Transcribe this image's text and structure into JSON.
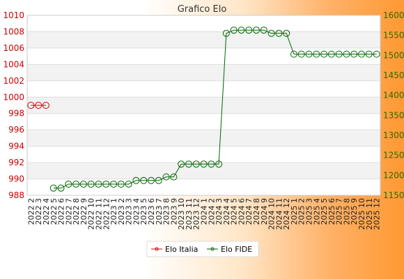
{
  "chart_data": {
    "type": "line",
    "title": "Grafico Elo",
    "x": [
      "2022 2",
      "2022 3",
      "2022 4",
      "2022 5",
      "2022 6",
      "2022 7",
      "2022 8",
      "2022 9",
      "2022 10",
      "2022 11",
      "2022 12",
      "2023 1",
      "2023 2",
      "2023 3",
      "2023 4",
      "2023 5",
      "2023 6",
      "2023 7",
      "2023 8",
      "2023 9",
      "2023 10",
      "2023 11",
      "2023 12",
      "2024 1",
      "2024 2",
      "2024 3",
      "2024 4",
      "2024 5",
      "2024 6",
      "2024 7",
      "2024 8",
      "2024 9",
      "2024 10",
      "2024 11",
      "2024 12",
      "2025 1",
      "2025 2",
      "2025 3",
      "2025 4",
      "2025 5",
      "2025 6",
      "2025 7",
      "2025 8",
      "2025 9",
      "2025 10",
      "2025 11",
      "2025 12"
    ],
    "y_left": {
      "min": 988,
      "max": 1010,
      "ticks": [
        988,
        990,
        992,
        994,
        996,
        998,
        1000,
        1002,
        1004,
        1006,
        1008,
        1010
      ],
      "color": "#cc0000"
    },
    "y_right": {
      "min": 1150,
      "max": 1600,
      "ticks": [
        1150,
        1200,
        1250,
        1300,
        1350,
        1400,
        1450,
        1500,
        1550,
        1600
      ],
      "color": "#336600"
    },
    "grid": true,
    "legend_position": "bottom-center",
    "series": [
      {
        "name": "Elo Italia",
        "axis": "left",
        "color": "#cc0000",
        "values": [
          999,
          999,
          999,
          null,
          null,
          null,
          null,
          null,
          null,
          null,
          null,
          null,
          null,
          null,
          null,
          null,
          null,
          null,
          null,
          null,
          null,
          null,
          null,
          null,
          null,
          null,
          null,
          null,
          null,
          null,
          null,
          null,
          null,
          null,
          null,
          null,
          null,
          null,
          null,
          null,
          null,
          null,
          null,
          null,
          null,
          null,
          null
        ]
      },
      {
        "name": "Elo FIDE",
        "axis": "right",
        "color": "#006600",
        "values": [
          null,
          null,
          null,
          1168,
          1168,
          1178,
          1178,
          1178,
          1178,
          1178,
          1178,
          1178,
          1178,
          1178,
          1187,
          1187,
          1187,
          1187,
          1196,
          1196,
          1228,
          1228,
          1228,
          1228,
          1228,
          1228,
          1555,
          1563,
          1563,
          1563,
          1563,
          1563,
          1555,
          1555,
          1555,
          1503,
          1503,
          1503,
          1503,
          1503,
          1503,
          1503,
          1503,
          1503,
          1503,
          1503,
          1503
        ]
      }
    ]
  }
}
